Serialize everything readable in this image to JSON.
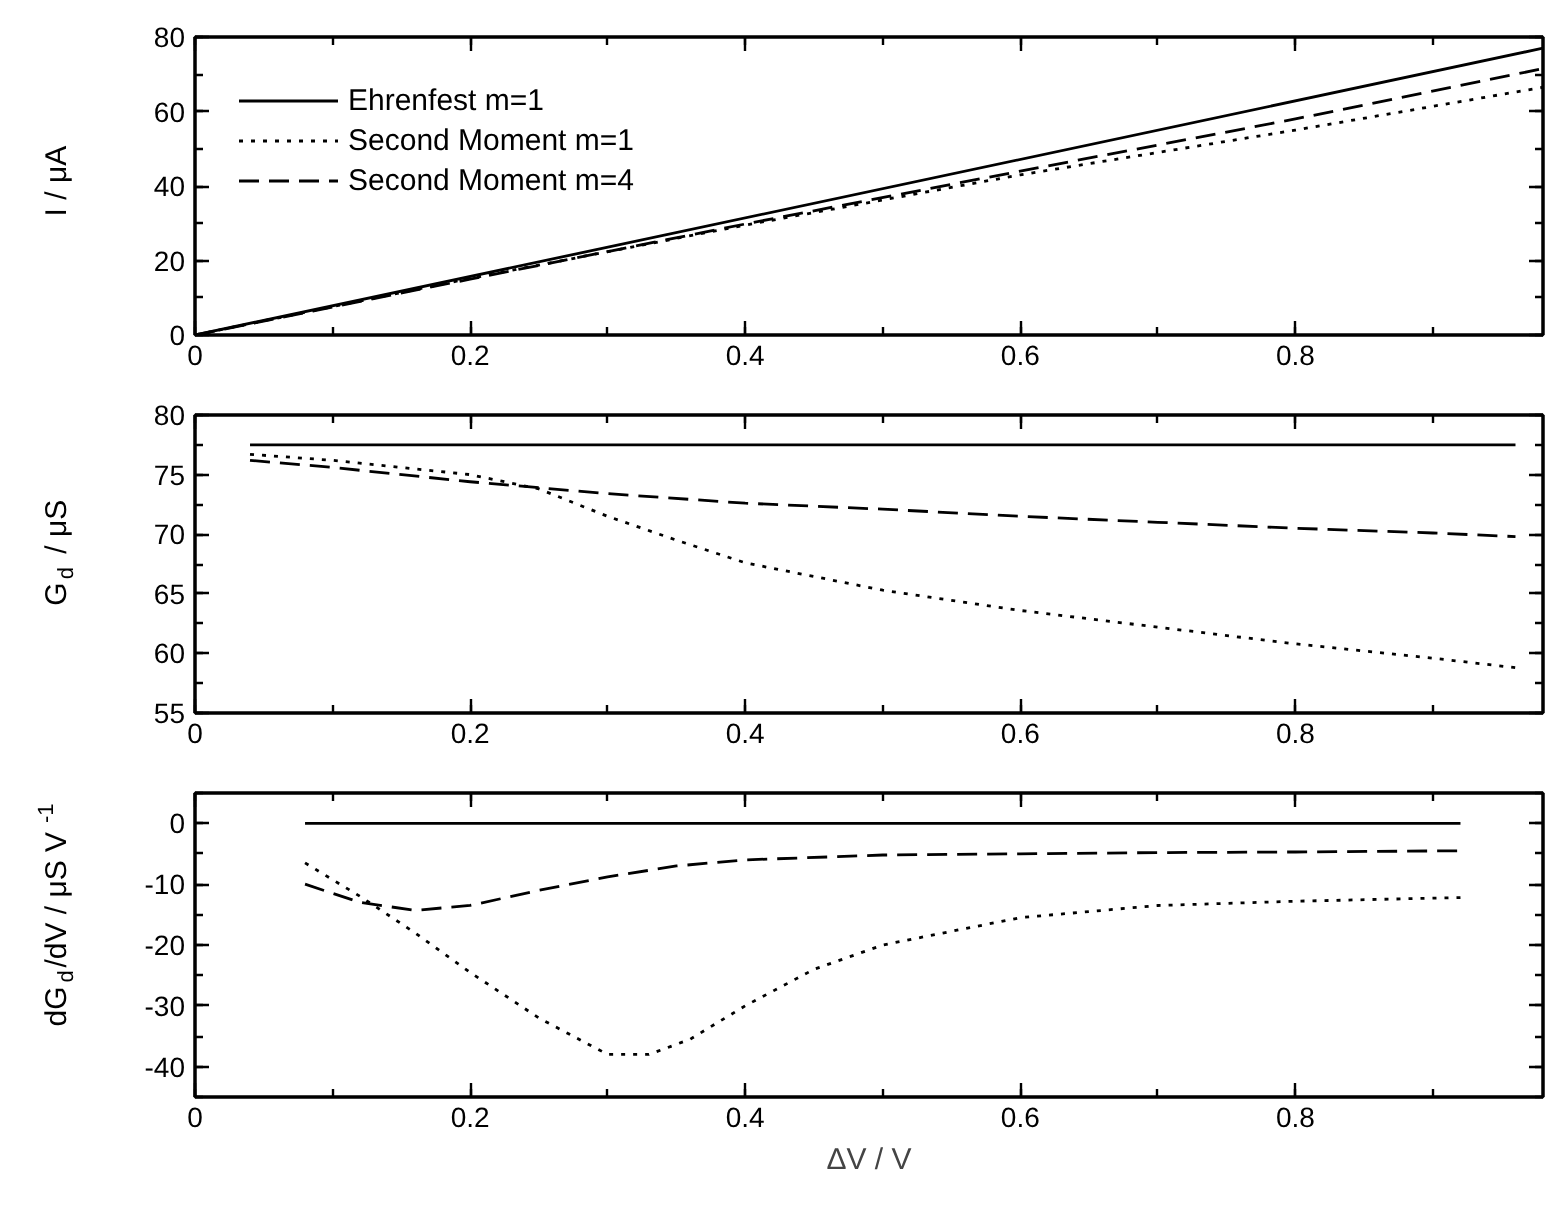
{
  "chart_data": [
    {
      "type": "line",
      "ylabel": "I / μA",
      "xlim": [
        0,
        0.98
      ],
      "ylim": [
        0,
        80
      ],
      "xticks": [
        0,
        0.2,
        0.4,
        0.6,
        0.8
      ],
      "yticks": [
        0,
        20,
        40,
        60,
        80
      ],
      "legend": "top left",
      "grid": false,
      "series": [
        {
          "name": "Ehrenfest m=1",
          "color": "#000000",
          "line_style": "solid",
          "x": [
            0,
            0.98
          ],
          "values": [
            0,
            77
          ]
        },
        {
          "name": "Second Moment m=1",
          "color": "#000000",
          "line_style": "dotted",
          "x": [
            0,
            0.2,
            0.4,
            0.6,
            0.8,
            0.98
          ],
          "values": [
            0,
            15.2,
            29.5,
            43,
            55,
            66.5
          ]
        },
        {
          "name": "Second Moment m=4",
          "color": "#000000",
          "line_style": "dashed",
          "x": [
            0,
            0.2,
            0.4,
            0.6,
            0.8,
            0.98
          ],
          "values": [
            0,
            15,
            29.8,
            44,
            58,
            71.5
          ]
        }
      ]
    },
    {
      "type": "line",
      "ylabel": "G$_{d}$ / μS",
      "xlim": [
        0,
        0.98
      ],
      "ylim": [
        55,
        80
      ],
      "xticks": [
        0,
        0.2,
        0.4,
        0.6,
        0.8
      ],
      "yticks": [
        55,
        60,
        65,
        70,
        75,
        80
      ],
      "grid": false,
      "series": [
        {
          "color": "#000000",
          "line_style": "solid",
          "x": [
            0.04,
            0.96
          ],
          "values": [
            77.5,
            77.5
          ]
        },
        {
          "color": "#000000",
          "line_style": "dotted",
          "x": [
            0.04,
            0.1,
            0.2,
            0.25,
            0.3,
            0.35,
            0.4,
            0.5,
            0.6,
            0.7,
            0.8,
            0.9,
            0.96
          ],
          "values": [
            76.7,
            76.2,
            75,
            73.8,
            71.5,
            69.5,
            67.6,
            65.3,
            63.6,
            62.2,
            60.8,
            59.6,
            58.8
          ]
        },
        {
          "color": "#000000",
          "line_style": "dashed",
          "x": [
            0.04,
            0.1,
            0.2,
            0.3,
            0.4,
            0.5,
            0.6,
            0.7,
            0.8,
            0.9,
            0.96
          ],
          "values": [
            76.2,
            75.6,
            74.4,
            73.4,
            72.6,
            72.1,
            71.5,
            71,
            70.5,
            70.1,
            69.8
          ]
        }
      ]
    },
    {
      "type": "line",
      "xlabel": "ΔV / V",
      "ylabel": "dG$_{d}$/dV / μS V$^{-1}$",
      "xlim": [
        0,
        0.98
      ],
      "ylim": [
        -45,
        5
      ],
      "xticks": [
        0,
        0.2,
        0.4,
        0.6,
        0.8
      ],
      "yticks": [
        -40,
        -30,
        -20,
        -10,
        0
      ],
      "grid": false,
      "series": [
        {
          "color": "#000000",
          "line_style": "solid",
          "x": [
            0.08,
            0.92
          ],
          "values": [
            0,
            0
          ]
        },
        {
          "color": "#000000",
          "line_style": "dotted",
          "x": [
            0.08,
            0.12,
            0.16,
            0.2,
            0.25,
            0.3,
            0.33,
            0.36,
            0.4,
            0.45,
            0.5,
            0.6,
            0.7,
            0.8,
            0.92
          ],
          "values": [
            -6.5,
            -12,
            -18,
            -24.5,
            -32,
            -38,
            -38,
            -35.5,
            -30,
            -24,
            -20,
            -15.5,
            -13.5,
            -12.8,
            -12.2
          ]
        },
        {
          "color": "#000000",
          "line_style": "dashed",
          "x": [
            0.08,
            0.12,
            0.16,
            0.2,
            0.25,
            0.3,
            0.35,
            0.4,
            0.5,
            0.6,
            0.7,
            0.8,
            0.92
          ],
          "values": [
            -10,
            -13,
            -14.3,
            -13.5,
            -11,
            -8.8,
            -7,
            -6,
            -5.2,
            -5,
            -4.8,
            -4.7,
            -4.5
          ]
        }
      ]
    }
  ]
}
